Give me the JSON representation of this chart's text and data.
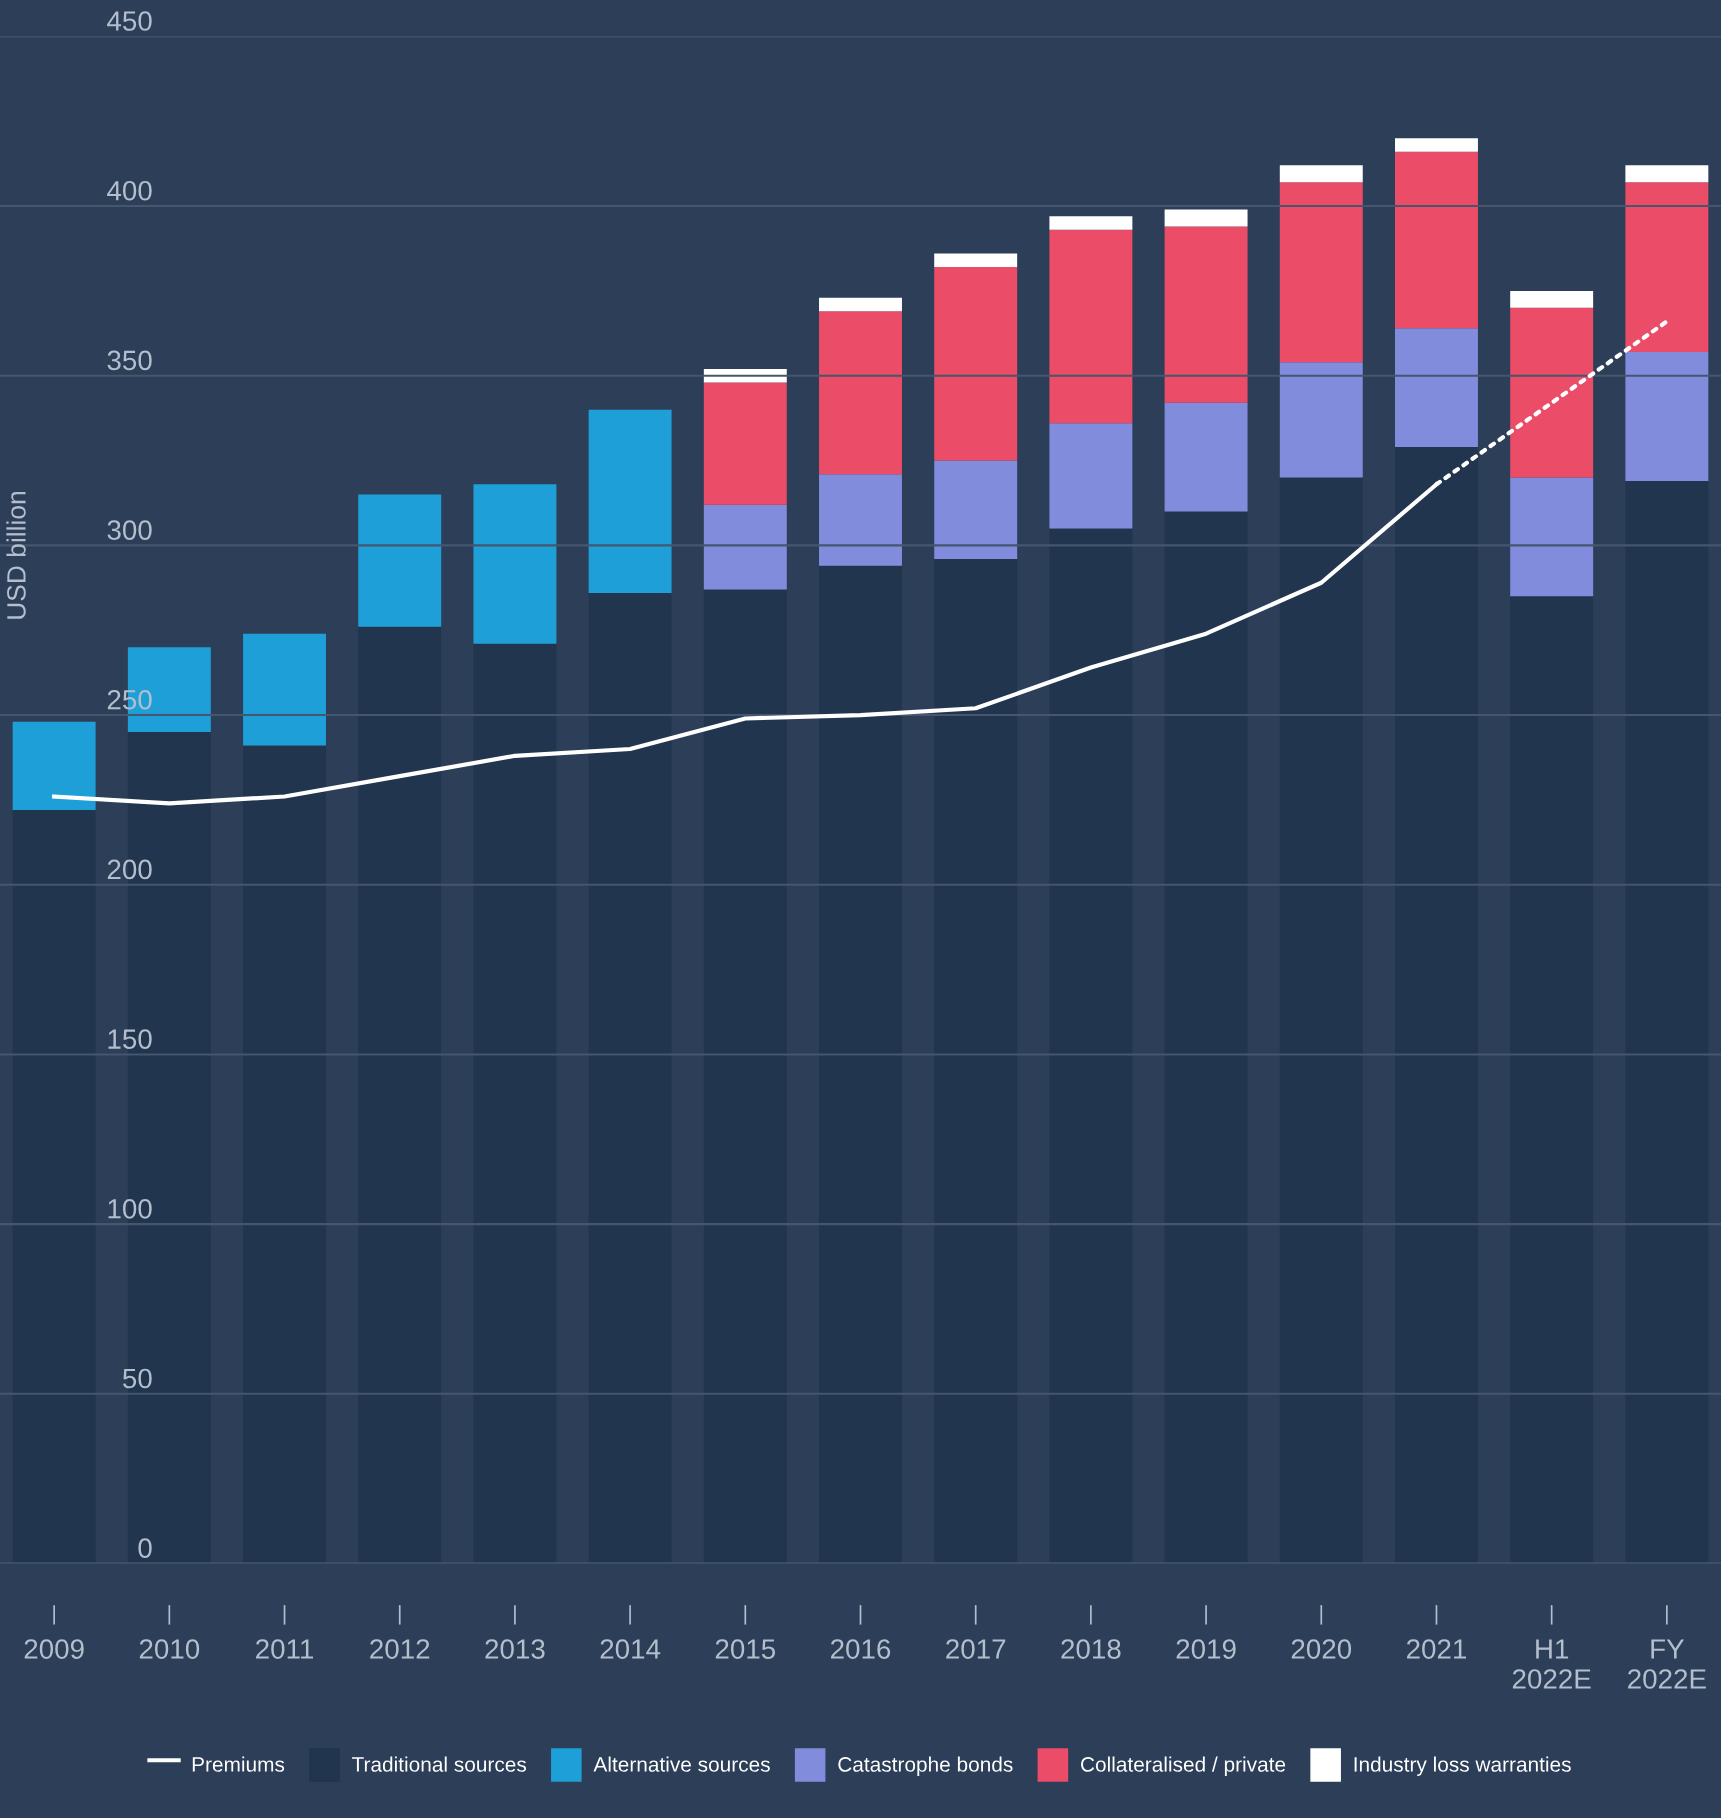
{
  "chart_data": {
    "type": "bar",
    "stacked": true,
    "ylabel": "USD billion",
    "categories": [
      "2009",
      "2010",
      "2011",
      "2012",
      "2013",
      "2014",
      "2015",
      "2016",
      "2017",
      "2018",
      "2019",
      "2020",
      "2021",
      "H1\n2022E",
      "FY\n2022E"
    ],
    "series": [
      {
        "name": "Traditional sources",
        "color": "#21354e",
        "values": [
          222,
          245,
          241,
          276,
          271,
          286,
          287,
          294,
          296,
          305,
          310,
          320,
          329,
          285,
          319
        ]
      },
      {
        "name": "Alternative sources",
        "color": "#1e9fd8",
        "values": [
          26,
          25,
          33,
          39,
          47,
          54,
          null,
          null,
          null,
          null,
          null,
          null,
          null,
          null,
          null
        ]
      },
      {
        "name": "Catastrophe bonds",
        "color": "#818cdc",
        "values": [
          null,
          null,
          null,
          null,
          null,
          null,
          25,
          27,
          29,
          31,
          32,
          34,
          35,
          35,
          38
        ]
      },
      {
        "name": "Collateralised / private",
        "color": "#eb4d68",
        "values": [
          null,
          null,
          null,
          null,
          null,
          null,
          36,
          48,
          57,
          57,
          52,
          53,
          52,
          50,
          50
        ]
      },
      {
        "name": "Industry loss warranties",
        "color": "#ffffff",
        "values": [
          null,
          null,
          null,
          null,
          null,
          null,
          4,
          4,
          4,
          4,
          5,
          5,
          4,
          5,
          5
        ]
      },
      {
        "name": "Premiums",
        "type": "line",
        "color": "#ffffff",
        "line_style": "solid",
        "values": [
          226,
          224,
          226,
          232,
          238,
          240,
          249,
          250,
          252,
          264,
          274,
          289,
          318,
          null,
          null
        ]
      },
      {
        "type": "line",
        "color": "#ffffff",
        "line_style": "dotted",
        "values": [
          null,
          null,
          null,
          null,
          null,
          null,
          null,
          null,
          null,
          null,
          null,
          null,
          318,
          null,
          366
        ]
      }
    ],
    "ylim": [
      0,
      450
    ],
    "yticks": [
      0,
      50,
      100,
      150,
      200,
      250,
      300,
      350,
      400,
      450
    ],
    "grid": "y",
    "legend": "bottom",
    "marker": "none"
  }
}
